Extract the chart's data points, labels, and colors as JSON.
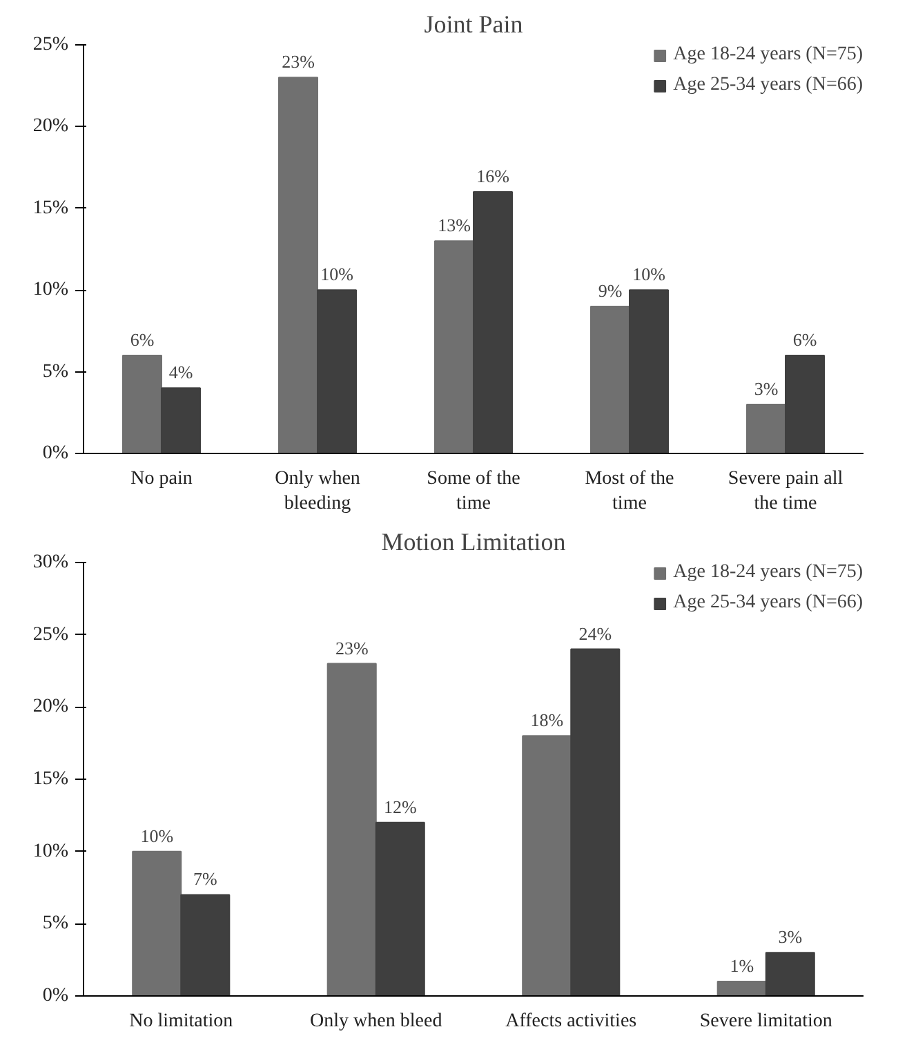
{
  "chart_data": [
    {
      "type": "bar",
      "title": "Joint Pain",
      "categories": [
        "No pain",
        "Only when\nbleeding",
        "Some of the\ntime",
        "Most of the\ntime",
        "Severe pain all\nthe time"
      ],
      "series": [
        {
          "name": "Age 18-24 years (N=75)",
          "color": "#707070",
          "values": [
            6,
            23,
            13,
            9,
            3
          ],
          "value_labels": [
            "6%",
            "23%",
            "13%",
            "9%",
            "3%"
          ]
        },
        {
          "name": "Age 25-34 years (N=66)",
          "color": "#3f3f3f",
          "values": [
            4,
            10,
            16,
            10,
            6
          ],
          "value_labels": [
            "4%",
            "10%",
            "16%",
            "10%",
            "6%"
          ]
        }
      ],
      "ylim": [
        0,
        25
      ],
      "yticks": [
        {
          "value": 0,
          "label": "0%"
        },
        {
          "value": 5,
          "label": "5%"
        },
        {
          "value": 10,
          "label": "10%"
        },
        {
          "value": 15,
          "label": "15%"
        },
        {
          "value": 20,
          "label": "20%"
        },
        {
          "value": 25,
          "label": "25%"
        }
      ],
      "grid": false,
      "legend": "top right"
    },
    {
      "type": "bar",
      "title": "Motion Limitation",
      "categories": [
        "No limitation",
        "Only when bleed",
        "Affects activities",
        "Severe limitation"
      ],
      "series": [
        {
          "name": "Age 18-24 years (N=75)",
          "color": "#707070",
          "values": [
            10,
            23,
            18,
            1
          ],
          "value_labels": [
            "10%",
            "23%",
            "18%",
            "1%"
          ]
        },
        {
          "name": "Age 25-34 years (N=66)",
          "color": "#3f3f3f",
          "values": [
            7,
            12,
            24,
            3
          ],
          "value_labels": [
            "7%",
            "12%",
            "24%",
            "3%"
          ]
        }
      ],
      "ylim": [
        0,
        30
      ],
      "yticks": [
        {
          "value": 0,
          "label": "0%"
        },
        {
          "value": 5,
          "label": "5%"
        },
        {
          "value": 10,
          "label": "10%"
        },
        {
          "value": 15,
          "label": "15%"
        },
        {
          "value": 20,
          "label": "20%"
        },
        {
          "value": 25,
          "label": "25%"
        },
        {
          "value": 30,
          "label": "30%"
        }
      ],
      "grid": false,
      "legend": "top right"
    }
  ]
}
